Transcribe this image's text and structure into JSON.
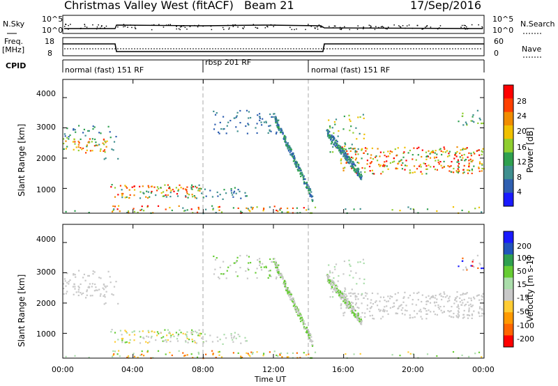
{
  "header": {
    "station": "Christmas Valley West (fitACF)",
    "beam": "Beam 21",
    "date": "17/Sep/2016"
  },
  "strip_labels": {
    "nsky": "N.Sky",
    "nsearch": "N.Search",
    "freq": "Freq.",
    "freq_unit": "[MHz]",
    "nave": "Nave",
    "cpid": "CPID",
    "noise_top": "10^5",
    "noise_bottom": "10^0",
    "noise_top_r": "10^5",
    "noise_bottom_r": "10^0",
    "freq_top": "18",
    "freq_bottom": "8",
    "nave_top": "60",
    "nave_bottom": "0"
  },
  "modes": [
    {
      "label": "normal (fast) 151 RF",
      "start_h": 0,
      "end_h": 8
    },
    {
      "label": "rbsp 201 RF",
      "start_h": 8,
      "end_h": 14
    },
    {
      "label": "normal (fast) 151 RF",
      "start_h": 14,
      "end_h": 24
    }
  ],
  "colors": {
    "power": [
      "#1a1aff",
      "#2f5fb0",
      "#3f8f8f",
      "#2fa04f",
      "#8fce2f",
      "#f0c000",
      "#f08c00",
      "#ff4000",
      "#ff0000"
    ],
    "velocity": [
      "#ff0000",
      "#ff6600",
      "#ff9900",
      "#ffcc33",
      "#c8c8c8",
      "#aaddaa",
      "#66cc33",
      "#2f9f4f",
      "#2255bb",
      "#1a1aff"
    ]
  },
  "chart_data": [
    {
      "type": "heatmap",
      "panel": "power",
      "xlabel": "",
      "ylabel": "Slant Range [km]",
      "xlim": [
        0,
        24
      ],
      "ylim": [
        180,
        4600
      ],
      "yticks": [
        "1000",
        "2000",
        "3000",
        "4000"
      ],
      "colorbar_label": "Power [dB]",
      "colorbar_ticks": [
        "4",
        "8",
        "12",
        "16",
        "20",
        "24",
        "28"
      ],
      "colorbar_range": [
        0,
        32
      ]
    },
    {
      "type": "heatmap",
      "panel": "velocity",
      "xlabel": "Time UT",
      "ylabel": "Slant Range [km]",
      "xlim": [
        0,
        24
      ],
      "ylim": [
        180,
        4600
      ],
      "xticks": [
        "00:00",
        "04:00",
        "08:00",
        "12:00",
        "16:00",
        "20:00",
        "00:00"
      ],
      "yticks": [
        "1000",
        "2000",
        "3000",
        "4000"
      ],
      "colorbar_label": "Velocity [m s-1]",
      "colorbar_ticks": [
        "200",
        "100",
        "50",
        "15",
        "-15",
        "-50",
        "-100",
        "-200"
      ]
    }
  ]
}
